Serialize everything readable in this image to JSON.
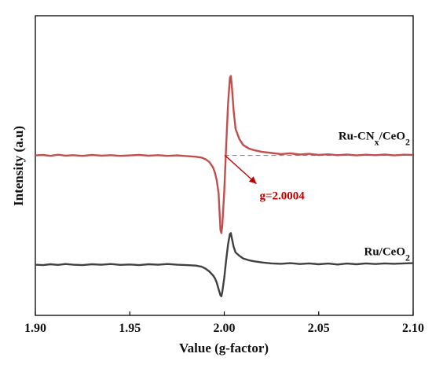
{
  "chart_data": {
    "type": "line",
    "title": "",
    "xlabel": "Value (g-factor)",
    "ylabel": "Intensity (a.u)",
    "xlim": [
      1.9,
      2.1
    ],
    "ylim": [
      0,
      1
    ],
    "x_ticks": [
      "1.90",
      "1.95",
      "2.00",
      "2.05",
      "2.10"
    ],
    "y_ticks_labeled": false,
    "grid": false,
    "legend": "none",
    "colors": {
      "ru_cnx": "#c0504d",
      "ru": "#404040",
      "annotation": "#c00000",
      "reference_line": "#777777"
    },
    "series": [
      {
        "label_parts": {
          "main": "Ru-CN",
          "sub1": "x",
          "mid": "/CeO",
          "sub2": "2"
        },
        "color": "#c0504d",
        "baseline": 0.641,
        "points": [
          [
            1.9,
            0.641
          ],
          [
            1.904,
            0.643
          ],
          [
            1.908,
            0.639
          ],
          [
            1.912,
            0.644
          ],
          [
            1.916,
            0.64
          ],
          [
            1.92,
            0.642
          ],
          [
            1.925,
            0.639
          ],
          [
            1.93,
            0.643
          ],
          [
            1.935,
            0.64
          ],
          [
            1.94,
            0.642
          ],
          [
            1.945,
            0.639
          ],
          [
            1.95,
            0.641
          ],
          [
            1.955,
            0.643
          ],
          [
            1.96,
            0.64
          ],
          [
            1.965,
            0.642
          ],
          [
            1.97,
            0.639
          ],
          [
            1.975,
            0.641
          ],
          [
            1.98,
            0.638
          ],
          [
            1.985,
            0.635
          ],
          [
            1.988,
            0.631
          ],
          [
            1.99,
            0.624
          ],
          [
            1.992,
            0.612
          ],
          [
            1.994,
            0.588
          ],
          [
            1.995,
            0.565
          ],
          [
            1.996,
            0.53
          ],
          [
            1.997,
            0.47
          ],
          [
            1.998,
            0.305
          ],
          [
            1.9985,
            0.292
          ],
          [
            1.999,
            0.33
          ],
          [
            2.0,
            0.48
          ],
          [
            2.001,
            0.68
          ],
          [
            2.002,
            0.87
          ],
          [
            2.003,
            0.99
          ],
          [
            2.0035,
            0.998
          ],
          [
            2.004,
            0.955
          ],
          [
            2.005,
            0.84
          ],
          [
            2.006,
            0.76
          ],
          [
            2.008,
            0.715
          ],
          [
            2.01,
            0.688
          ],
          [
            2.013,
            0.672
          ],
          [
            2.016,
            0.664
          ],
          [
            2.02,
            0.657
          ],
          [
            2.025,
            0.652
          ],
          [
            2.03,
            0.647
          ],
          [
            2.035,
            0.65
          ],
          [
            2.04,
            0.645
          ],
          [
            2.045,
            0.648
          ],
          [
            2.05,
            0.643
          ],
          [
            2.055,
            0.646
          ],
          [
            2.06,
            0.642
          ],
          [
            2.065,
            0.645
          ],
          [
            2.07,
            0.641
          ],
          [
            2.075,
            0.644
          ],
          [
            2.08,
            0.642
          ],
          [
            2.085,
            0.645
          ],
          [
            2.09,
            0.641
          ],
          [
            2.095,
            0.644
          ],
          [
            2.1,
            0.643
          ]
        ]
      },
      {
        "label_parts": {
          "main": "Ru/CeO",
          "sub1": "",
          "mid": "",
          "sub2": "2"
        },
        "color": "#404040",
        "baseline": 0.15,
        "points": [
          [
            1.9,
            0.15
          ],
          [
            1.904,
            0.148
          ],
          [
            1.908,
            0.152
          ],
          [
            1.912,
            0.149
          ],
          [
            1.916,
            0.153
          ],
          [
            1.92,
            0.15
          ],
          [
            1.925,
            0.148
          ],
          [
            1.93,
            0.152
          ],
          [
            1.935,
            0.15
          ],
          [
            1.94,
            0.153
          ],
          [
            1.945,
            0.149
          ],
          [
            1.95,
            0.151
          ],
          [
            1.955,
            0.148
          ],
          [
            1.96,
            0.152
          ],
          [
            1.965,
            0.15
          ],
          [
            1.97,
            0.153
          ],
          [
            1.975,
            0.15
          ],
          [
            1.98,
            0.148
          ],
          [
            1.985,
            0.146
          ],
          [
            1.988,
            0.141
          ],
          [
            1.99,
            0.133
          ],
          [
            1.992,
            0.12
          ],
          [
            1.994,
            0.102
          ],
          [
            1.995,
            0.09
          ],
          [
            1.996,
            0.07
          ],
          [
            1.997,
            0.04
          ],
          [
            1.998,
            0.012
          ],
          [
            1.9985,
            0.008
          ],
          [
            1.999,
            0.03
          ],
          [
            2.0,
            0.09
          ],
          [
            2.001,
            0.17
          ],
          [
            2.002,
            0.24
          ],
          [
            2.003,
            0.288
          ],
          [
            2.0035,
            0.292
          ],
          [
            2.004,
            0.27
          ],
          [
            2.005,
            0.23
          ],
          [
            2.006,
            0.205
          ],
          [
            2.008,
            0.19
          ],
          [
            2.01,
            0.178
          ],
          [
            2.013,
            0.17
          ],
          [
            2.016,
            0.165
          ],
          [
            2.02,
            0.16
          ],
          [
            2.025,
            0.156
          ],
          [
            2.03,
            0.154
          ],
          [
            2.035,
            0.157
          ],
          [
            2.04,
            0.153
          ],
          [
            2.045,
            0.156
          ],
          [
            2.05,
            0.152
          ],
          [
            2.055,
            0.155
          ],
          [
            2.06,
            0.151
          ],
          [
            2.065,
            0.155
          ],
          [
            2.07,
            0.152
          ],
          [
            2.075,
            0.156
          ],
          [
            2.08,
            0.153
          ],
          [
            2.085,
            0.156
          ],
          [
            2.09,
            0.154
          ],
          [
            2.095,
            0.156
          ],
          [
            2.1,
            0.157
          ]
        ]
      }
    ],
    "annotation": {
      "text": "g=2.0004",
      "x": 2.0004
    }
  }
}
